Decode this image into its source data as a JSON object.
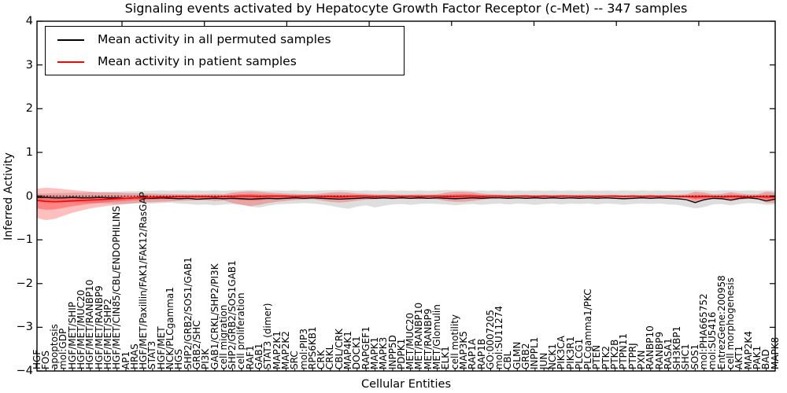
{
  "chart_data": {
    "type": "line",
    "title": "Signaling events activated by Hepatocyte Growth Factor Receptor (c-Met) -- 347 samples",
    "xlabel": "Cellular Entities",
    "ylabel": "Inferred Activity",
    "ylim": [
      -4,
      4
    ],
    "yticks": [
      4,
      3,
      2,
      1,
      0,
      -1,
      -2,
      -3,
      -4
    ],
    "grid": false,
    "legend_position": "upper left",
    "legend": [
      {
        "label": "Mean activity in all permuted samples",
        "color": "#000000"
      },
      {
        "label": "Mean activity in patient samples",
        "color": "#ff0000"
      }
    ],
    "reference_line": {
      "y": 0,
      "style": "dotted",
      "color": "#000000"
    },
    "colors": {
      "patient_line": "#ff0000",
      "permuted_line": "#000000",
      "patient_band": "rgba(255,0,0,0.25)",
      "patient_band_inner": "rgba(255,0,0,0.30)",
      "permuted_band": "rgba(0,0,0,0.13)"
    },
    "categories": [
      "HGF",
      "FOS",
      "apoptosis",
      "mol:GDP",
      "HGF/MET/SHIP",
      "HGF/MET/MUC20",
      "HGF/MET/RANBP10",
      "HGF/MET/RANBP9",
      "HGF/MET/SHP2",
      "HGF/MET/CIN85/CBL/ENDOPHILINS",
      "AP1",
      "HRAS",
      "HGF/MET/Paxillin/FAK1/FAK12/RasGAP",
      "STAT3",
      "HGF/MET",
      "NCK/PLCgamma1",
      "HGS",
      "SHP2/GRB2/SOS1/GAB1",
      "GRB2/SHC",
      "PI3K",
      "GAB1/CRKL/SHP2/PI3K",
      "cell migration",
      "SHP2/GRB2/SOS1GAB1",
      "cell proliferation",
      "RAF1",
      "GAB1",
      "STAT3 (dimer)",
      "MAP2K1",
      "MAP2K2",
      "SRC",
      "mol:PIP3",
      "RPS6KB1",
      "CRK",
      "CRKL",
      "CBL/CRK",
      "MAP4K1",
      "DOCK1",
      "RAPGEF1",
      "MAPK1",
      "MAPK3",
      "INPP5D",
      "PDPK1",
      "MET/MUC20",
      "MET/RANBP10",
      "MET/RANBP9",
      "MET/Glomulin",
      "ELK1",
      "cell motility",
      "MAP3K5",
      "RAP1A",
      "RAP1B",
      "GO:0007205",
      "mol:SU11274",
      "CBL",
      "GLMN",
      "GRB2",
      "INPPL1",
      "JUN",
      "NCK1",
      "PIK3CA",
      "PIK3R1",
      "PLCG1",
      "PLCgamma1/PKC",
      "PTEN",
      "PTK2",
      "PTK2B",
      "PTPN11",
      "PTPRJ",
      "PXN",
      "RANBP10",
      "RANBP9",
      "RASA1",
      "SH3KBP1",
      "SHC1",
      "SOS1",
      "mol:PHA665752",
      "mol:SU5416",
      "EntrezGene:200958",
      "cell morphogenesis",
      "AKT1",
      "MAP2K4",
      "PAK1",
      "BAD",
      "MAPK8"
    ],
    "series": [
      {
        "name": "permuted_mean",
        "values": [
          -0.03,
          -0.03,
          -0.04,
          -0.04,
          -0.03,
          -0.04,
          -0.04,
          -0.03,
          -0.04,
          -0.04,
          -0.05,
          -0.04,
          -0.04,
          -0.05,
          -0.04,
          -0.05,
          -0.06,
          -0.05,
          -0.07,
          -0.06,
          -0.05,
          -0.06,
          -0.05,
          -0.06,
          -0.07,
          -0.06,
          -0.05,
          -0.06,
          -0.05,
          -0.04,
          -0.05,
          -0.04,
          -0.05,
          -0.06,
          -0.07,
          -0.06,
          -0.05,
          -0.04,
          -0.05,
          -0.04,
          -0.05,
          -0.04,
          -0.05,
          -0.04,
          -0.05,
          -0.04,
          -0.05,
          -0.06,
          -0.05,
          -0.04,
          -0.05,
          -0.04,
          -0.04,
          -0.05,
          -0.04,
          -0.05,
          -0.04,
          -0.05,
          -0.04,
          -0.05,
          -0.04,
          -0.05,
          -0.04,
          -0.05,
          -0.04,
          -0.05,
          -0.06,
          -0.05,
          -0.04,
          -0.05,
          -0.04,
          -0.05,
          -0.06,
          -0.08,
          -0.15,
          -0.08,
          -0.05,
          -0.06,
          -0.09,
          -0.05,
          -0.04,
          -0.06,
          -0.11,
          -0.07
        ]
      },
      {
        "name": "patient_mean",
        "values": [
          -0.1,
          -0.12,
          -0.13,
          -0.12,
          -0.11,
          -0.1,
          -0.09,
          -0.08,
          -0.07,
          -0.06,
          -0.05,
          -0.04,
          -0.03,
          -0.03,
          -0.02,
          -0.02,
          -0.01,
          -0.01,
          -0.01,
          -0.01,
          -0.02,
          -0.01,
          -0.01,
          0,
          0,
          -0.01,
          0,
          0,
          0,
          -0.01,
          0,
          0,
          -0.01,
          -0.01,
          -0.02,
          -0.01,
          0,
          0,
          -0.01,
          0,
          0,
          -0.01,
          0,
          -0.01,
          0,
          0,
          -0.01,
          -0.01,
          0,
          0,
          -0.01,
          0,
          0,
          -0.01,
          0,
          0,
          -0.01,
          0,
          -0.01,
          0,
          0,
          -0.01,
          0,
          -0.01,
          0,
          0,
          -0.01,
          0,
          -0.01,
          0,
          -0.01,
          0,
          -0.01,
          -0.01,
          -0.02,
          -0.01,
          -0.01,
          -0.02,
          -0.01,
          -0.01,
          -0.02,
          -0.01,
          -0.02,
          -0.02
        ]
      }
    ],
    "bands": [
      {
        "name": "permuted_range",
        "upper": [
          0.06,
          0.06,
          0.07,
          0.07,
          0.08,
          0.08,
          0.09,
          0.09,
          0.1,
          0.1,
          0.11,
          0.11,
          0.12,
          0.12,
          0.13,
          0.12,
          0.13,
          0.12,
          0.13,
          0.12,
          0.13,
          0.12,
          0.13,
          0.13,
          0.14,
          0.13,
          0.12,
          0.13,
          0.12,
          0.13,
          0.12,
          0.12,
          0.13,
          0.13,
          0.14,
          0.13,
          0.12,
          0.13,
          0.12,
          0.13,
          0.12,
          0.13,
          0.12,
          0.13,
          0.12,
          0.13,
          0.14,
          0.13,
          0.13,
          0.12,
          0.13,
          0.12,
          0.13,
          0.12,
          0.13,
          0.12,
          0.13,
          0.12,
          0.13,
          0.12,
          0.13,
          0.12,
          0.13,
          0.12,
          0.13,
          0.12,
          0.13,
          0.12,
          0.13,
          0.12,
          0.13,
          0.12,
          0.13,
          0.13,
          0.14,
          0.13,
          0.12,
          0.13,
          0.13,
          0.12,
          0.13,
          0.12,
          0.13,
          0.13
        ],
        "lower": [
          -0.1,
          -0.11,
          -0.12,
          -0.13,
          -0.14,
          -0.15,
          -0.16,
          -0.16,
          -0.17,
          -0.18,
          -0.18,
          -0.17,
          -0.16,
          -0.17,
          -0.16,
          -0.15,
          -0.17,
          -0.18,
          -0.2,
          -0.19,
          -0.21,
          -0.19,
          -0.18,
          -0.2,
          -0.24,
          -0.26,
          -0.22,
          -0.19,
          -0.18,
          -0.17,
          -0.16,
          -0.17,
          -0.19,
          -0.22,
          -0.26,
          -0.29,
          -0.24,
          -0.21,
          -0.26,
          -0.22,
          -0.19,
          -0.18,
          -0.2,
          -0.18,
          -0.17,
          -0.18,
          -0.19,
          -0.21,
          -0.19,
          -0.18,
          -0.2,
          -0.18,
          -0.17,
          -0.19,
          -0.17,
          -0.18,
          -0.2,
          -0.18,
          -0.17,
          -0.19,
          -0.17,
          -0.18,
          -0.17,
          -0.19,
          -0.17,
          -0.18,
          -0.2,
          -0.18,
          -0.17,
          -0.18,
          -0.17,
          -0.19,
          -0.2,
          -0.24,
          -0.28,
          -0.25,
          -0.19,
          -0.18,
          -0.21,
          -0.18,
          -0.16,
          -0.17,
          -0.2,
          -0.19
        ]
      },
      {
        "name": "patient_range",
        "upper": [
          0.17,
          0.19,
          0.18,
          0.16,
          0.14,
          0.12,
          0.1,
          0.09,
          0.08,
          0.08,
          0.07,
          0.07,
          0.06,
          0.06,
          0.05,
          0.05,
          0.04,
          0.04,
          0.04,
          0.04,
          0.05,
          0.04,
          0.08,
          0.1,
          0.11,
          0.1,
          0.08,
          0.07,
          0.06,
          0.05,
          0.04,
          0.04,
          0.06,
          0.08,
          0.09,
          0.08,
          0.06,
          0.05,
          0.04,
          0.03,
          0.04,
          0.03,
          0.03,
          0.04,
          0.03,
          0.04,
          0.08,
          0.1,
          0.1,
          0.09,
          0.06,
          0.04,
          0.03,
          0.03,
          0.02,
          0.03,
          0.02,
          0.03,
          0.02,
          0.03,
          0.02,
          0.03,
          0.02,
          0.03,
          0.02,
          0.03,
          0.02,
          0.03,
          0.02,
          0.03,
          0.02,
          0.03,
          0.03,
          0.04,
          0.1,
          0.08,
          0.04,
          0.05,
          0.09,
          0.06,
          0.04,
          0.04,
          0.1,
          0.08
        ],
        "lower": [
          -0.5,
          -0.55,
          -0.52,
          -0.45,
          -0.38,
          -0.33,
          -0.28,
          -0.25,
          -0.22,
          -0.2,
          -0.18,
          -0.16,
          -0.15,
          -0.14,
          -0.13,
          -0.12,
          -0.11,
          -0.1,
          -0.1,
          -0.09,
          -0.11,
          -0.1,
          -0.16,
          -0.2,
          -0.23,
          -0.2,
          -0.16,
          -0.13,
          -0.11,
          -0.09,
          -0.08,
          -0.07,
          -0.1,
          -0.13,
          -0.15,
          -0.13,
          -0.1,
          -0.08,
          -0.07,
          -0.06,
          -0.07,
          -0.06,
          -0.06,
          -0.07,
          -0.06,
          -0.07,
          -0.11,
          -0.13,
          -0.13,
          -0.11,
          -0.08,
          -0.06,
          -0.05,
          -0.05,
          -0.04,
          -0.05,
          -0.04,
          -0.05,
          -0.04,
          -0.05,
          -0.04,
          -0.05,
          -0.04,
          -0.05,
          -0.04,
          -0.05,
          -0.04,
          -0.05,
          -0.04,
          -0.05,
          -0.04,
          -0.05,
          -0.05,
          -0.06,
          -0.14,
          -0.11,
          -0.06,
          -0.07,
          -0.12,
          -0.08,
          -0.06,
          -0.07,
          -0.15,
          -0.16
        ]
      }
    ]
  }
}
